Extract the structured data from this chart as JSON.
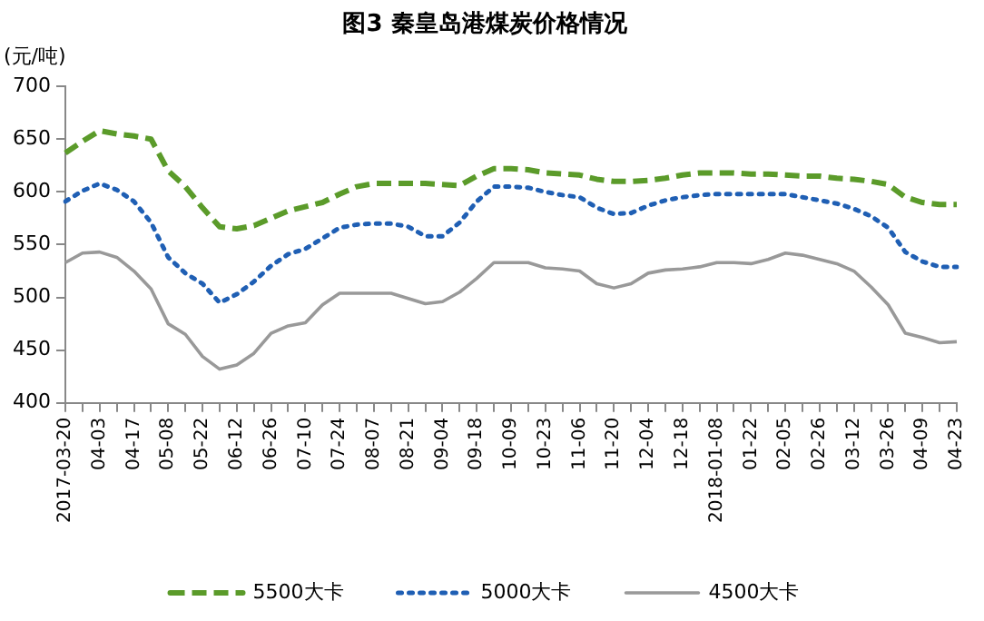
{
  "chart_data": {
    "type": "line",
    "title": "图3 秦皇岛港煤炭价格情况",
    "ylabel": "(元/吨)",
    "categories": [
      "2017-03-20",
      null,
      "04-03",
      null,
      "04-17",
      null,
      "05-08",
      null,
      "05-22",
      null,
      "06-12",
      null,
      "06-26",
      null,
      "07-10",
      null,
      "07-24",
      null,
      "08-07",
      null,
      "08-21",
      null,
      "09-04",
      null,
      "09-18",
      null,
      "10-09",
      null,
      "10-23",
      null,
      "11-06",
      null,
      "11-20",
      null,
      "12-04",
      null,
      "12-18",
      null,
      "2018-01-08",
      null,
      "01-22",
      null,
      "02-05",
      null,
      "02-26",
      null,
      "03-12",
      null,
      "03-26",
      null,
      "04-09",
      null,
      "04-23"
    ],
    "series": [
      {
        "name": "5500大卡",
        "color": "#5b9b2a",
        "line_style": "dashed",
        "values": [
          637,
          648,
          658,
          655,
          653,
          650,
          620,
          605,
          585,
          567,
          565,
          568,
          575,
          582,
          586,
          590,
          598,
          605,
          608,
          608,
          608,
          608,
          607,
          606,
          615,
          622,
          622,
          621,
          618,
          617,
          616,
          612,
          610,
          610,
          611,
          613,
          616,
          618,
          618,
          618,
          617,
          617,
          616,
          615,
          615,
          613,
          612,
          610,
          607,
          595,
          590,
          588,
          588
        ]
      },
      {
        "name": "5000大卡",
        "color": "#1f5fb4",
        "line_style": "dotted",
        "values": [
          591,
          601,
          608,
          602,
          591,
          571,
          538,
          523,
          513,
          495,
          503,
          515,
          530,
          541,
          546,
          556,
          566,
          569,
          570,
          570,
          567,
          558,
          558,
          571,
          591,
          605,
          605,
          604,
          600,
          597,
          595,
          585,
          579,
          580,
          587,
          592,
          595,
          597,
          598,
          598,
          598,
          598,
          598,
          595,
          592,
          589,
          584,
          577,
          566,
          543,
          534,
          529,
          529
        ]
      },
      {
        "name": "4500大卡",
        "color": "#999999",
        "line_style": "solid",
        "values": [
          533,
          542,
          543,
          538,
          525,
          508,
          475,
          465,
          444,
          432,
          436,
          447,
          466,
          473,
          476,
          493,
          504,
          504,
          504,
          504,
          499,
          494,
          496,
          505,
          518,
          533,
          533,
          533,
          528,
          527,
          525,
          513,
          509,
          513,
          523,
          526,
          527,
          529,
          533,
          533,
          532,
          536,
          542,
          540,
          536,
          532,
          525,
          510,
          493,
          466,
          462,
          457,
          458
        ]
      }
    ],
    "ylim": [
      400,
      700
    ],
    "yticks": [
      400,
      450,
      500,
      550,
      600,
      650,
      700
    ],
    "grid": false,
    "legend": "bottom",
    "marker": "none"
  }
}
